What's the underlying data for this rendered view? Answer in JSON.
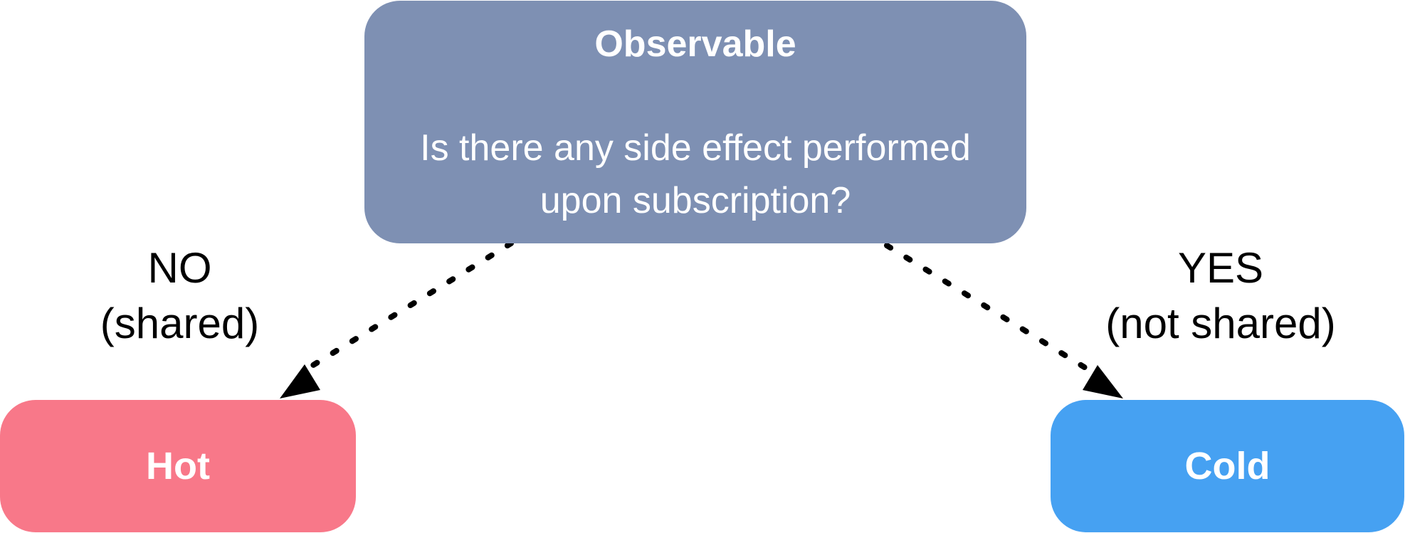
{
  "nodes": {
    "observable": {
      "title": "Observable",
      "question_line1": "Is there any side effect performed",
      "question_line2": "upon subscription?",
      "color": "#7e90b3"
    },
    "hot": {
      "label": "Hot",
      "color": "#f87889"
    },
    "cold": {
      "label": "Cold",
      "color": "#46a1f2"
    }
  },
  "edges": {
    "no": {
      "line1": "NO",
      "line2": "(shared)"
    },
    "yes": {
      "line1": "YES",
      "line2": "(not shared)"
    },
    "style": "dotted-arrow",
    "color": "#000000"
  }
}
